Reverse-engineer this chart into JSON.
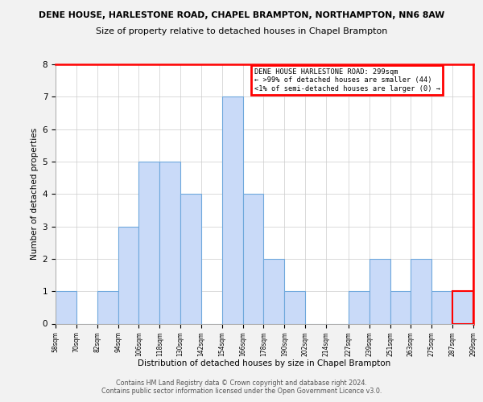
{
  "title_top": "DENE HOUSE, HARLESTONE ROAD, CHAPEL BRAMPTON, NORTHAMPTON, NN6 8AW",
  "title_sub": "Size of property relative to detached houses in Chapel Brampton",
  "xlabel": "Distribution of detached houses by size in Chapel Brampton",
  "ylabel": "Number of detached properties",
  "bin_edges": [
    58,
    70,
    82,
    94,
    106,
    118,
    130,
    142,
    154,
    166,
    178,
    190,
    202,
    214,
    227,
    239,
    251,
    263,
    275,
    287,
    299
  ],
  "counts": [
    1,
    0,
    1,
    3,
    5,
    5,
    4,
    0,
    7,
    4,
    2,
    1,
    0,
    0,
    1,
    2,
    1,
    2,
    1,
    1
  ],
  "bar_color": "#c9daf8",
  "bar_edge_color": "#6fa8dc",
  "highlight_bin_index": 19,
  "highlight_color": "#ff0000",
  "ylim": [
    0,
    8
  ],
  "yticks": [
    0,
    1,
    2,
    3,
    4,
    5,
    6,
    7,
    8
  ],
  "x_tick_labels": [
    "58sqm",
    "70sqm",
    "82sqm",
    "94sqm",
    "106sqm",
    "118sqm",
    "130sqm",
    "142sqm",
    "154sqm",
    "166sqm",
    "178sqm",
    "190sqm",
    "202sqm",
    "214sqm",
    "227sqm",
    "239sqm",
    "251sqm",
    "263sqm",
    "275sqm",
    "287sqm",
    "299sqm"
  ],
  "legend_title": "DENE HOUSE HARLESTONE ROAD: 299sqm",
  "legend_line1": "← >99% of detached houses are smaller (44)",
  "legend_line2": "<1% of semi-detached houses are larger (0) →",
  "footer_line1": "Contains HM Land Registry data © Crown copyright and database right 2024.",
  "footer_line2": "Contains public sector information licensed under the Open Government Licence v3.0.",
  "bg_color": "#f2f2f2",
  "plot_bg_color": "#ffffff",
  "grid_color": "#cccccc"
}
